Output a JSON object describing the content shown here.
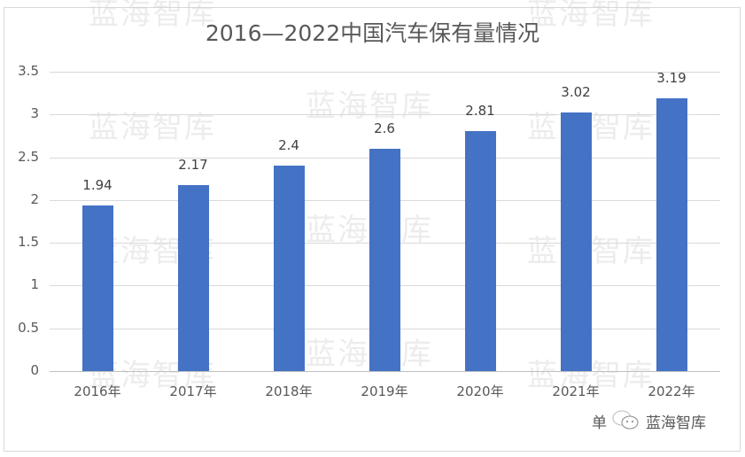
{
  "chart_data": {
    "type": "bar",
    "title": "2016—2022中国汽车保有量情况",
    "xlabel": "",
    "ylabel": "",
    "categories": [
      "2016年",
      "2017年",
      "2018年",
      "2019年",
      "2020年",
      "2021年",
      "2022年"
    ],
    "values": [
      1.94,
      2.17,
      2.4,
      2.6,
      2.81,
      3.02,
      3.19
    ],
    "value_labels": [
      "1.94",
      "2.17",
      "2.4",
      "2.6",
      "2.81",
      "3.02",
      "3.19"
    ],
    "ylim": [
      0,
      3.5
    ],
    "yticks": [
      "0",
      "0.5",
      "1",
      "1.5",
      "2",
      "2.5",
      "3",
      "3.5"
    ],
    "grid": true,
    "legend": "none",
    "bar_color": "#4472c4"
  },
  "watermark": "蓝海智库",
  "footer": {
    "unit_prefix": "单",
    "source": "蓝海智库"
  }
}
